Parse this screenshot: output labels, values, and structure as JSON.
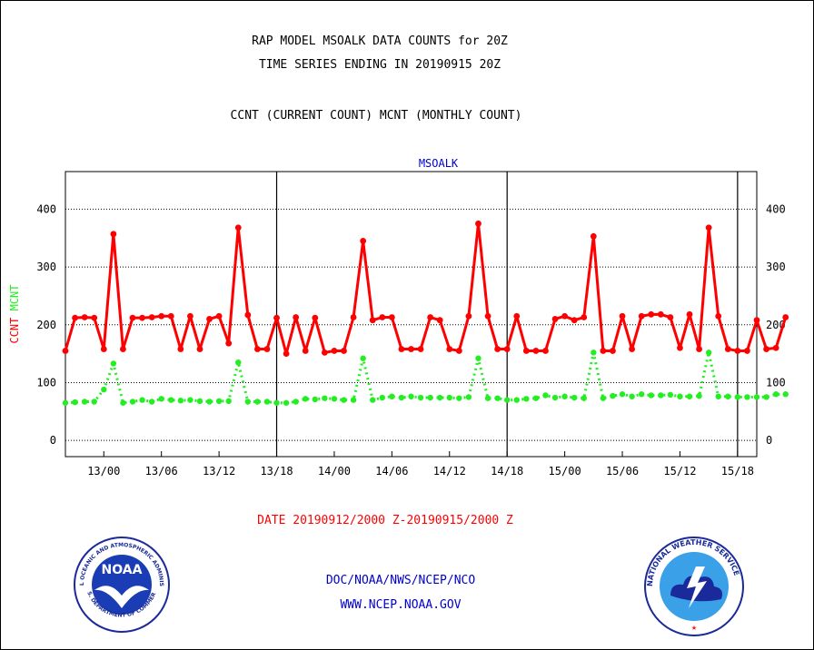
{
  "titles": {
    "line1": "RAP MODEL MSOALK DATA COUNTS for 20Z",
    "line2": "TIME SERIES ENDING IN 20190915 20Z",
    "line3": "CCNT (CURRENT COUNT) MCNT (MONTHLY COUNT)"
  },
  "footer": {
    "date_range": "DATE 20190912/2000 Z-20190915/2000 Z",
    "org": "DOC/NOAA/NWS/NCEP/NCO",
    "url": "WWW.NCEP.NOAA.GOV"
  },
  "logos": {
    "noaa_text": "NOAA",
    "noaa_ring_top": "NATIONAL OCEANIC AND ATMOSPHERIC ADMINISTRATION",
    "noaa_ring_bottom": "U.S. DEPARTMENT OF COMMERCE",
    "nws_ring": "NATIONAL WEATHER SERVICE"
  },
  "colors": {
    "ccnt": "#ff0000",
    "mcnt": "#22ee22",
    "title": "#000000",
    "footer_org": "#0000cc",
    "date": "#ff0000"
  },
  "chart_data": {
    "type": "line",
    "title": "MSOALK",
    "ylabel_series": [
      "CCNT",
      "MCNT"
    ],
    "ylim": [
      -28,
      465
    ],
    "yticks": [
      0,
      100,
      200,
      300,
      400
    ],
    "xlim": [
      0,
      72
    ],
    "xtick_labels": [
      "13/00",
      "13/06",
      "13/12",
      "13/18",
      "14/00",
      "14/06",
      "14/12",
      "14/18",
      "15/00",
      "15/06",
      "15/12",
      "15/18"
    ],
    "xtick_hours": [
      4,
      10,
      16,
      22,
      28,
      34,
      40,
      46,
      52,
      58,
      64,
      70
    ],
    "day_dividers_hours": [
      22,
      46,
      70
    ],
    "grid": "horizontal-dotted",
    "series": [
      {
        "name": "CCNT",
        "style": "solid",
        "values": [
          155,
          212,
          213,
          212,
          158,
          357,
          158,
          212,
          212,
          213,
          215,
          215,
          158,
          215,
          158,
          210,
          215,
          168,
          368,
          217,
          158,
          158,
          212,
          150,
          213,
          155,
          212,
          152,
          155,
          155,
          213,
          345,
          208,
          213,
          213,
          158,
          158,
          158,
          213,
          208,
          158,
          155,
          215,
          375,
          215,
          158,
          158,
          215,
          155,
          155,
          155,
          210,
          215,
          208,
          213,
          353,
          155,
          155,
          215,
          158,
          215,
          218,
          218,
          213,
          160,
          218,
          158,
          368,
          215,
          158,
          155,
          155,
          208,
          158,
          160,
          213
        ]
      },
      {
        "name": "MCNT",
        "style": "dotted",
        "values": [
          65,
          66,
          67,
          67,
          88,
          133,
          65,
          67,
          70,
          67,
          72,
          70,
          69,
          70,
          68,
          67,
          68,
          68,
          135,
          67,
          67,
          67,
          65,
          65,
          67,
          72,
          71,
          73,
          72,
          70,
          70,
          142,
          70,
          74,
          76,
          74,
          76,
          74,
          74,
          74,
          74,
          73,
          75,
          142,
          73,
          73,
          70,
          70,
          72,
          73,
          78,
          74,
          76,
          74,
          73,
          152,
          73,
          77,
          80,
          76,
          80,
          78,
          78,
          79,
          76,
          76,
          77,
          152,
          76,
          76,
          75,
          75,
          75,
          75,
          80,
          80
        ]
      }
    ]
  }
}
